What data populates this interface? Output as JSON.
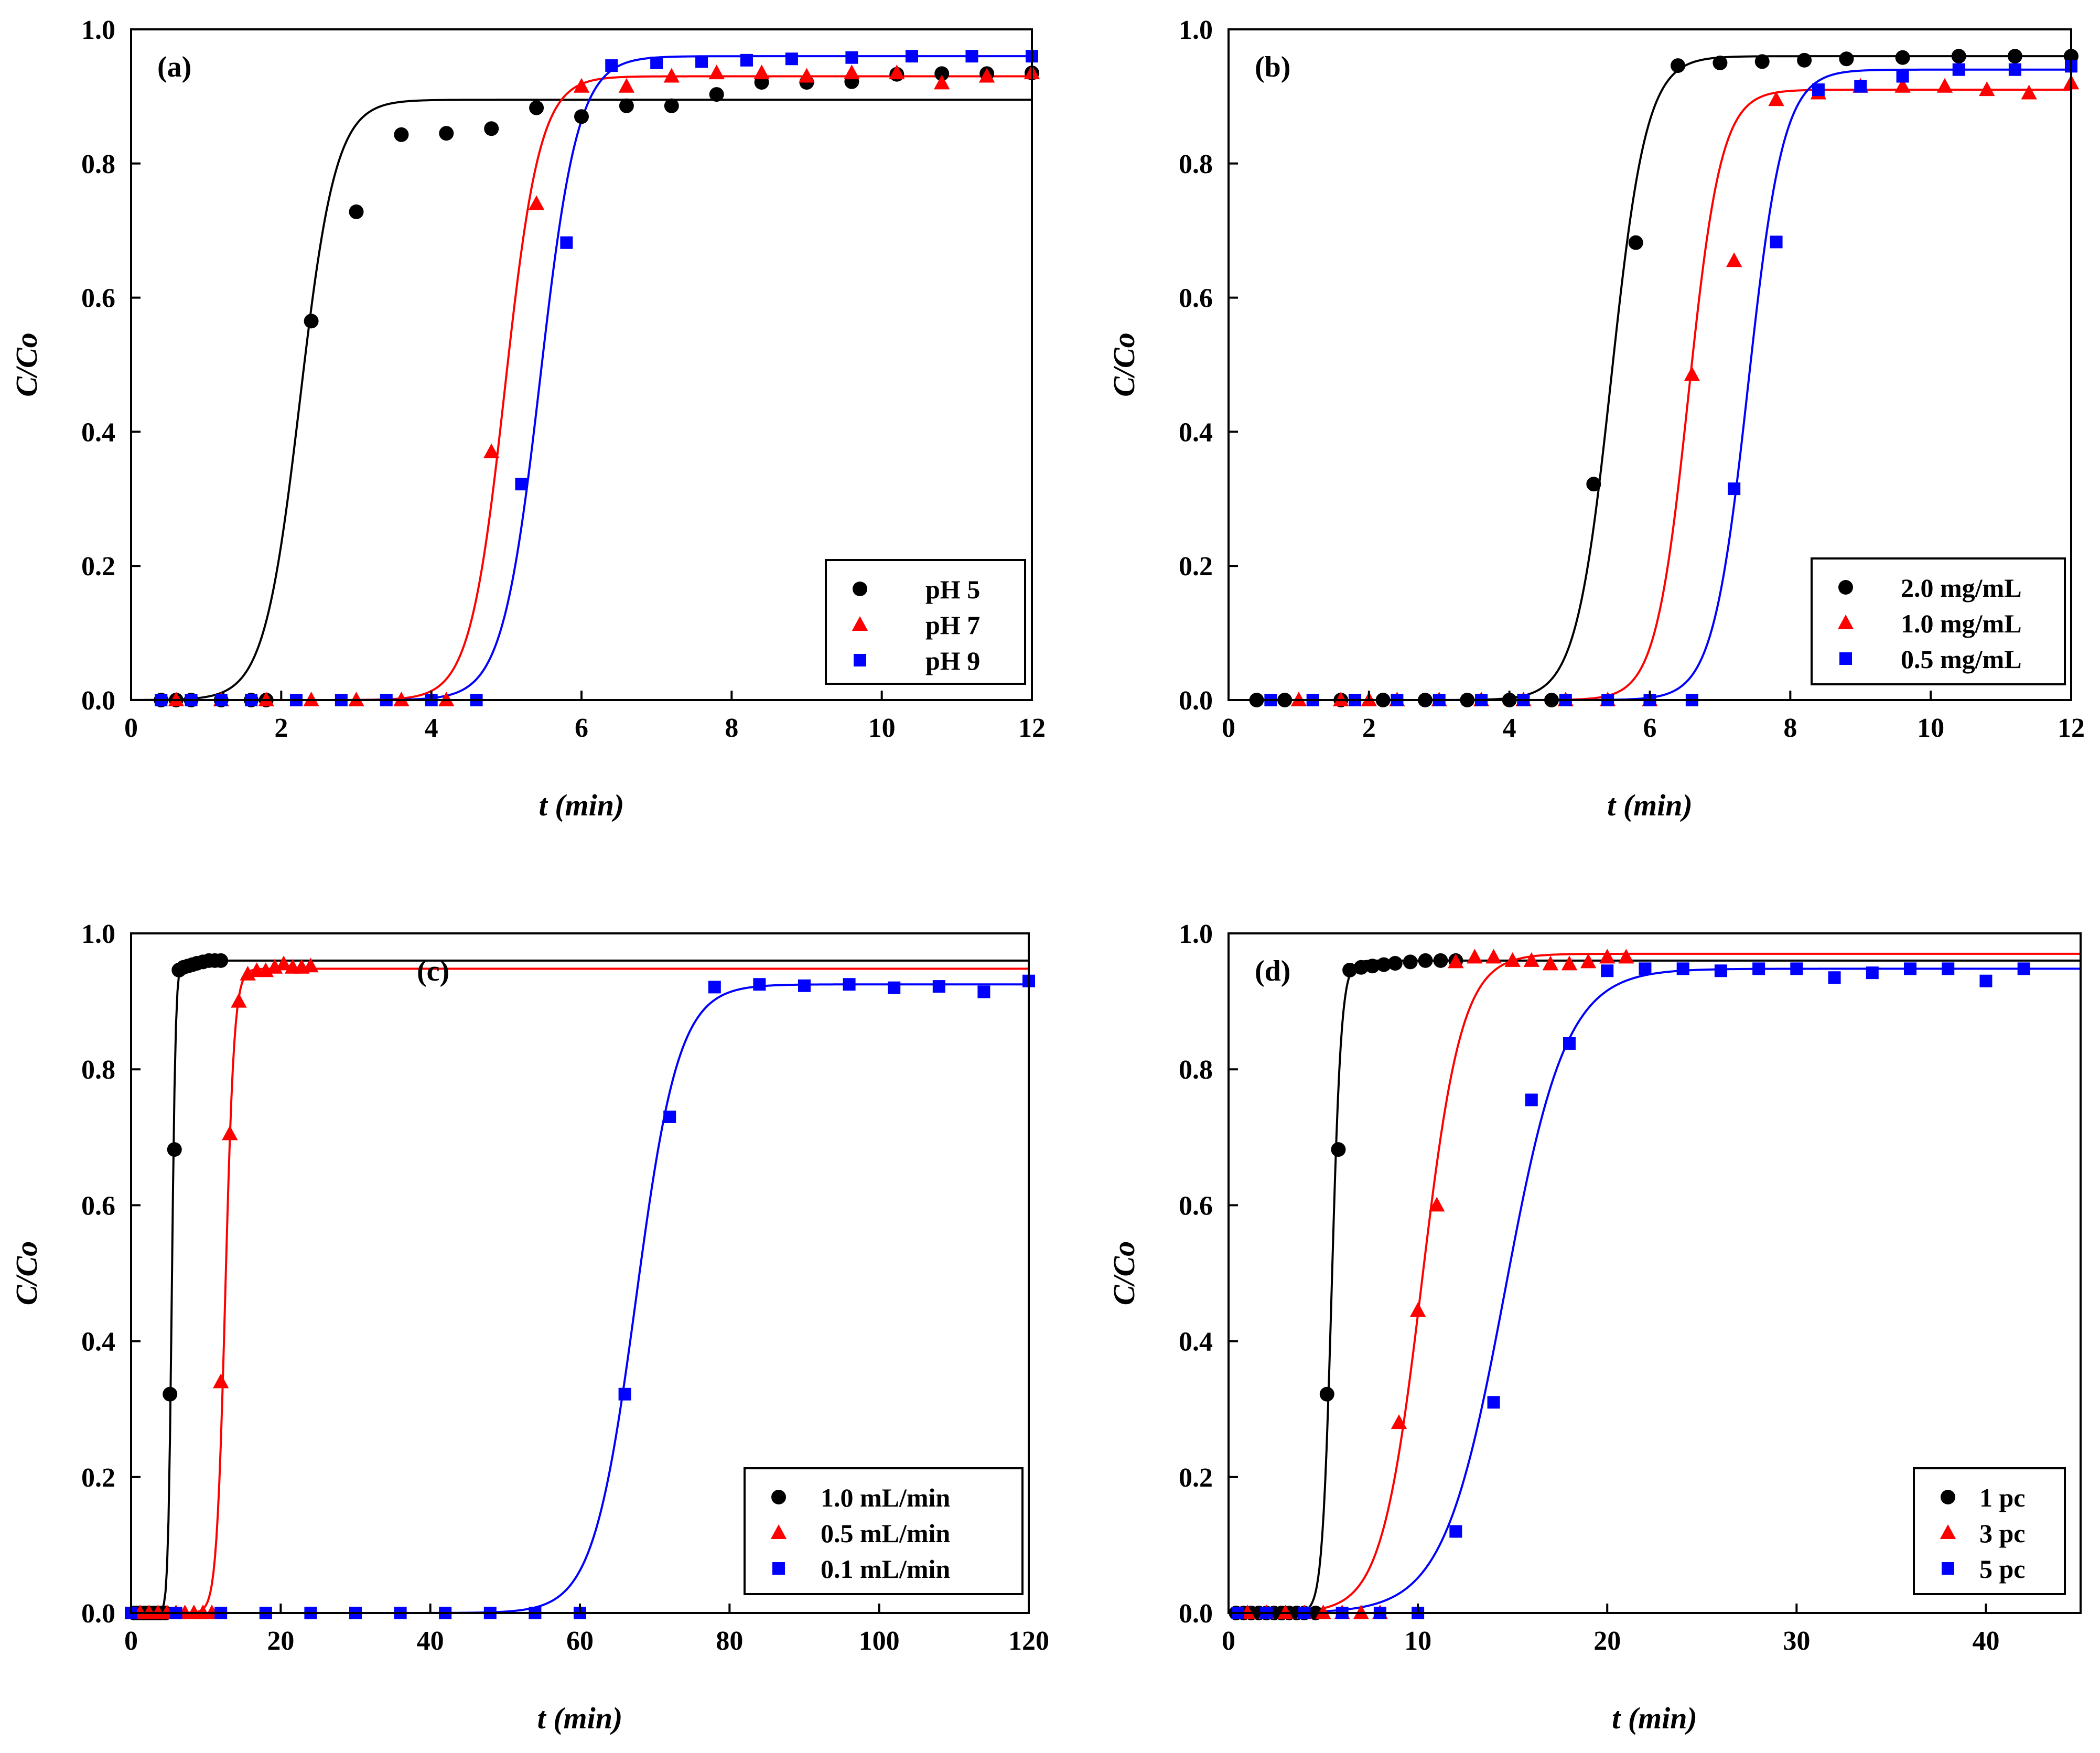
{
  "chart_data": [
    {
      "type": "scatter",
      "panel": "(a)",
      "xlabel": "t (min)",
      "ylabel": "C/Co",
      "xlim": [
        0,
        12
      ],
      "ylim": [
        0,
        1.0
      ],
      "xticks": [
        "0",
        "2",
        "4",
        "6",
        "8",
        "10",
        "12"
      ],
      "yticks": [
        "0.0",
        "0.2",
        "0.4",
        "0.6",
        "0.8",
        "1.0"
      ],
      "legend_position": "bottom-right",
      "series": [
        {
          "name": "pH 5",
          "color": "#000000",
          "marker": "circle",
          "x": [
            0.4,
            0.6,
            0.8,
            1.2,
            1.6,
            1.8,
            2.4,
            3.0,
            3.6,
            4.2,
            4.8,
            5.4,
            6.0,
            6.6,
            7.2,
            7.8,
            8.4,
            9.0,
            9.6,
            10.2,
            10.8,
            11.4,
            12.0
          ],
          "y": [
            0.0,
            0.0,
            0.0,
            0.0,
            0.0,
            0.0,
            0.565,
            0.728,
            0.843,
            0.845,
            0.852,
            0.883,
            0.87,
            0.886,
            0.886,
            0.903,
            0.921,
            0.921,
            0.922,
            0.933,
            0.934,
            0.934,
            0.935
          ],
          "fit": {
            "plateau": 0.895,
            "t50": 2.25,
            "k": 4.2
          }
        },
        {
          "name": "pH 7",
          "color": "#ff0000",
          "marker": "triangle",
          "x": [
            0.6,
            1.2,
            1.8,
            2.4,
            3.0,
            3.6,
            4.2,
            4.8,
            5.4,
            6.0,
            6.6,
            7.2,
            7.8,
            8.4,
            9.0,
            9.6,
            10.2,
            10.8,
            11.4,
            12.0
          ],
          "y": [
            0.0,
            0.0,
            0.0,
            0.0,
            0.0,
            0.0,
            0.0,
            0.37,
            0.74,
            0.915,
            0.915,
            0.93,
            0.935,
            0.935,
            0.93,
            0.935,
            0.935,
            0.92,
            0.93,
            0.935
          ],
          "fit": {
            "plateau": 0.93,
            "t50": 4.98,
            "k": 4.3
          }
        },
        {
          "name": "pH 9",
          "color": "#0000ff",
          "marker": "square",
          "x": [
            0.4,
            0.8,
            1.2,
            1.6,
            2.2,
            2.8,
            3.4,
            4.0,
            4.6,
            5.2,
            5.8,
            6.4,
            7.0,
            7.6,
            8.2,
            8.8,
            9.6,
            10.4,
            11.2,
            12.0
          ],
          "y": [
            0.0,
            0.0,
            0.0,
            0.0,
            0.0,
            0.0,
            0.0,
            0.0,
            0.0,
            0.322,
            0.682,
            0.946,
            0.95,
            0.952,
            0.954,
            0.956,
            0.958,
            0.96,
            0.96,
            0.96
          ],
          "fit": {
            "plateau": 0.96,
            "t50": 5.45,
            "k": 4.0
          }
        }
      ]
    },
    {
      "type": "scatter",
      "panel": "(b)",
      "xlabel": "t (min)",
      "ylabel": "C/Co",
      "xlim": [
        0,
        12
      ],
      "ylim": [
        0,
        1.0
      ],
      "xticks": [
        "0",
        "2",
        "4",
        "6",
        "8",
        "10",
        "12"
      ],
      "yticks": [
        "0.0",
        "0.2",
        "0.4",
        "0.6",
        "0.8",
        "1.0"
      ],
      "legend_position": "bottom-right",
      "series": [
        {
          "name": "2.0 mg/mL",
          "color": "#000000",
          "marker": "circle",
          "x": [
            0.4,
            0.8,
            1.6,
            2.2,
            2.8,
            3.4,
            4.0,
            4.6,
            5.2,
            5.8,
            6.4,
            7.0,
            7.6,
            8.2,
            8.8,
            9.6,
            10.4,
            11.2,
            12.0
          ],
          "y": [
            0.0,
            0.0,
            0.0,
            0.0,
            0.0,
            0.0,
            0.0,
            0.0,
            0.322,
            0.682,
            0.946,
            0.95,
            0.952,
            0.954,
            0.956,
            0.958,
            0.96,
            0.96,
            0.96
          ],
          "fit": {
            "plateau": 0.96,
            "t50": 5.45,
            "k": 4.0
          }
        },
        {
          "name": "1.0 mg/mL",
          "color": "#ff0000",
          "marker": "triangle",
          "x": [
            1.0,
            1.6,
            2.0,
            2.4,
            3.0,
            3.6,
            4.2,
            4.8,
            5.4,
            6.0,
            6.6,
            7.2,
            7.8,
            8.4,
            9.0,
            9.6,
            10.2,
            10.8,
            11.4,
            12.0
          ],
          "y": [
            0.0,
            0.0,
            0.0,
            0.0,
            0.0,
            0.0,
            0.0,
            0.0,
            0.0,
            0.0,
            0.485,
            0.655,
            0.895,
            0.905,
            0.915,
            0.915,
            0.915,
            0.91,
            0.905,
            0.92
          ],
          "fit": {
            "plateau": 0.91,
            "t50": 6.55,
            "k": 4.3
          }
        },
        {
          "name": "0.5 mg/mL",
          "color": "#0000ff",
          "marker": "square",
          "x": [
            0.6,
            1.2,
            1.8,
            2.4,
            3.0,
            3.6,
            4.2,
            4.8,
            5.4,
            6.0,
            6.6,
            7.2,
            7.8,
            8.4,
            9.0,
            9.6,
            10.4,
            11.2,
            12.0
          ],
          "y": [
            0.0,
            0.0,
            0.0,
            0.0,
            0.0,
            0.0,
            0.0,
            0.0,
            0.0,
            0.0,
            0.0,
            0.315,
            0.683,
            0.91,
            0.915,
            0.93,
            0.94,
            0.94,
            0.945
          ],
          "fit": {
            "plateau": 0.94,
            "t50": 7.4,
            "k": 4.0
          }
        }
      ]
    },
    {
      "type": "scatter",
      "panel": "(c)",
      "xlabel": "t (min)",
      "ylabel": "C/Co",
      "xlim": [
        0,
        120
      ],
      "ylim": [
        0,
        1.0
      ],
      "xticks": [
        "0",
        "20",
        "40",
        "60",
        "80",
        "100",
        "120"
      ],
      "yticks": [
        "0.0",
        "0.2",
        "0.4",
        "0.6",
        "0.8",
        "1.0"
      ],
      "legend_position": "bottom-right",
      "series": [
        {
          "name": "1.0 mL/min",
          "color": "#000000",
          "marker": "circle",
          "x": [
            0.4,
            0.8,
            1.2,
            1.6,
            2.0,
            2.4,
            2.8,
            3.2,
            3.6,
            4.0,
            4.6,
            5.2,
            5.8,
            6.4,
            7.0,
            7.6,
            8.2,
            8.8,
            9.6,
            10.4,
            11.2,
            12.0
          ],
          "y": [
            0.0,
            0.0,
            0.0,
            0.0,
            0.0,
            0.0,
            0.0,
            0.0,
            0.0,
            0.0,
            0.0,
            0.322,
            0.682,
            0.946,
            0.95,
            0.952,
            0.954,
            0.956,
            0.958,
            0.96,
            0.96,
            0.96
          ],
          "fit": {
            "plateau": 0.96,
            "t50": 5.45,
            "k": 4.0
          }
        },
        {
          "name": "0.5 mL/min",
          "color": "#ff0000",
          "marker": "triangle",
          "x": [
            1.2,
            2.4,
            3.6,
            4.8,
            6.0,
            7.2,
            8.4,
            9.6,
            10.8,
            12.0,
            13.2,
            14.4,
            15.6,
            16.8,
            18.0,
            19.2,
            20.4,
            21.6,
            22.8,
            24.0
          ],
          "y": [
            0.0,
            0.0,
            0.0,
            0.0,
            0.0,
            0.0,
            0.0,
            0.0,
            0.0,
            0.34,
            0.705,
            0.9,
            0.94,
            0.945,
            0.945,
            0.95,
            0.955,
            0.95,
            0.95,
            0.952
          ],
          "fit": {
            "plateau": 0.948,
            "t50": 12.6,
            "k": 1.7
          }
        },
        {
          "name": "0.1 mL/min",
          "color": "#0000ff",
          "marker": "square",
          "x": [
            0,
            6,
            12,
            18,
            24,
            30,
            36,
            42,
            48,
            54,
            60,
            66,
            72,
            78,
            84,
            90,
            96,
            102,
            108,
            114,
            120
          ],
          "y": [
            0.0,
            0.0,
            0.0,
            0.0,
            0.0,
            0.0,
            0.0,
            0.0,
            0.0,
            0.0,
            0.0,
            0.322,
            0.73,
            0.921,
            0.925,
            0.923,
            0.925,
            0.92,
            0.922,
            0.914,
            0.93
          ],
          "fit": {
            "plateau": 0.925,
            "t50": 67.5,
            "k": 0.35
          }
        }
      ]
    },
    {
      "type": "scatter",
      "panel": "(d)",
      "xlabel": "t (min)",
      "ylabel": "C/Co",
      "xlim": [
        0,
        45
      ],
      "ylim": [
        0,
        1.0
      ],
      "xticks": [
        "0",
        "10",
        "20",
        "30",
        "40"
      ],
      "yticks": [
        "0.0",
        "0.2",
        "0.4",
        "0.6",
        "0.8",
        "1.0"
      ],
      "legend_position": "bottom-right",
      "series": [
        {
          "name": "1 pc",
          "color": "#000000",
          "marker": "circle",
          "x": [
            0.4,
            0.8,
            1.2,
            1.6,
            2.0,
            2.4,
            2.8,
            3.2,
            3.6,
            4.0,
            4.6,
            5.2,
            5.8,
            6.4,
            7.0,
            7.6,
            8.2,
            8.8,
            9.6,
            10.4,
            11.2,
            12.0
          ],
          "y": [
            0.0,
            0.0,
            0.0,
            0.0,
            0.0,
            0.0,
            0.0,
            0.0,
            0.0,
            0.0,
            0.0,
            0.322,
            0.682,
            0.946,
            0.95,
            0.952,
            0.954,
            0.956,
            0.958,
            0.96,
            0.96,
            0.96
          ],
          "fit": {
            "plateau": 0.96,
            "t50": 5.45,
            "k": 4.0
          }
        },
        {
          "name": "3 pc",
          "color": "#ff0000",
          "marker": "triangle",
          "x": [
            1.0,
            2.0,
            3.0,
            4.0,
            5.0,
            6.0,
            7.0,
            8.0,
            9.0,
            10.0,
            11.0,
            12.0,
            13.0,
            14.0,
            15.0,
            16.0,
            17.0,
            18.0,
            19.0,
            20.0,
            21.0
          ],
          "y": [
            0.0,
            0.0,
            0.0,
            0.0,
            0.0,
            0.0,
            0.0,
            0.0,
            0.28,
            0.445,
            0.6,
            0.958,
            0.965,
            0.965,
            0.96,
            0.96,
            0.955,
            0.955,
            0.958,
            0.965,
            0.965
          ],
          "fit": {
            "plateau": 0.97,
            "t50": 10.2,
            "k": 0.95
          }
        },
        {
          "name": "5 pc",
          "color": "#0000ff",
          "marker": "square",
          "x": [
            0.5,
            2.0,
            4.0,
            6.0,
            8.0,
            10.0,
            12.0,
            14.0,
            16.0,
            18.0,
            20.0,
            22.0,
            24.0,
            26.0,
            28.0,
            30.0,
            32.0,
            34.0,
            36.0,
            38.0,
            40.0,
            42.0
          ],
          "y": [
            0.0,
            0.0,
            0.0,
            0.0,
            0.0,
            0.0,
            0.12,
            0.31,
            0.755,
            0.838,
            0.945,
            0.948,
            0.948,
            0.945,
            0.948,
            0.948,
            0.935,
            0.942,
            0.948,
            0.948,
            0.93,
            0.948
          ],
          "fit": {
            "plateau": 0.948,
            "t50": 14.6,
            "k": 0.62
          }
        }
      ]
    }
  ]
}
